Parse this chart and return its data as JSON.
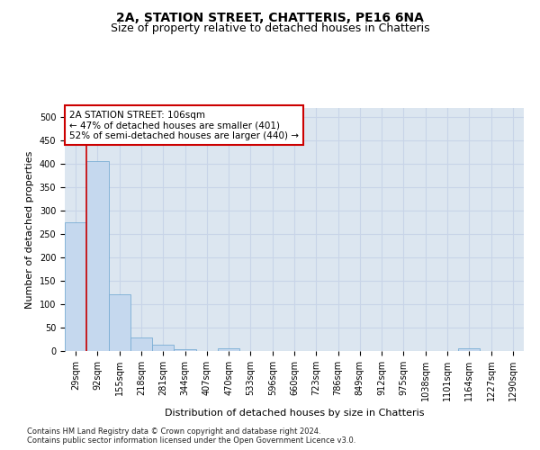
{
  "title": "2A, STATION STREET, CHATTERIS, PE16 6NA",
  "subtitle": "Size of property relative to detached houses in Chatteris",
  "xlabel": "Distribution of detached houses by size in Chatteris",
  "ylabel": "Number of detached properties",
  "footnote1": "Contains HM Land Registry data © Crown copyright and database right 2024.",
  "footnote2": "Contains public sector information licensed under the Open Government Licence v3.0.",
  "bar_labels": [
    "29sqm",
    "92sqm",
    "155sqm",
    "218sqm",
    "281sqm",
    "344sqm",
    "407sqm",
    "470sqm",
    "533sqm",
    "596sqm",
    "660sqm",
    "723sqm",
    "786sqm",
    "849sqm",
    "912sqm",
    "975sqm",
    "1038sqm",
    "1101sqm",
    "1164sqm",
    "1227sqm",
    "1290sqm"
  ],
  "bar_values": [
    275,
    407,
    122,
    29,
    14,
    4,
    0,
    5,
    0,
    0,
    0,
    0,
    0,
    0,
    0,
    0,
    0,
    0,
    5,
    0,
    0
  ],
  "bar_color": "#c5d8ee",
  "bar_edge_color": "#7aadd4",
  "vline_color": "#cc0000",
  "annotation_text": "2A STATION STREET: 106sqm\n← 47% of detached houses are smaller (401)\n52% of semi-detached houses are larger (440) →",
  "annotation_box_color": "white",
  "annotation_box_edge_color": "#cc0000",
  "ylim": [
    0,
    520
  ],
  "yticks": [
    0,
    50,
    100,
    150,
    200,
    250,
    300,
    350,
    400,
    450,
    500
  ],
  "grid_color": "#c8d4e8",
  "background_color": "#dce6f0",
  "title_fontsize": 10,
  "subtitle_fontsize": 9,
  "axis_label_fontsize": 8,
  "tick_fontsize": 7,
  "annotation_fontsize": 7.5,
  "footnote_fontsize": 6
}
